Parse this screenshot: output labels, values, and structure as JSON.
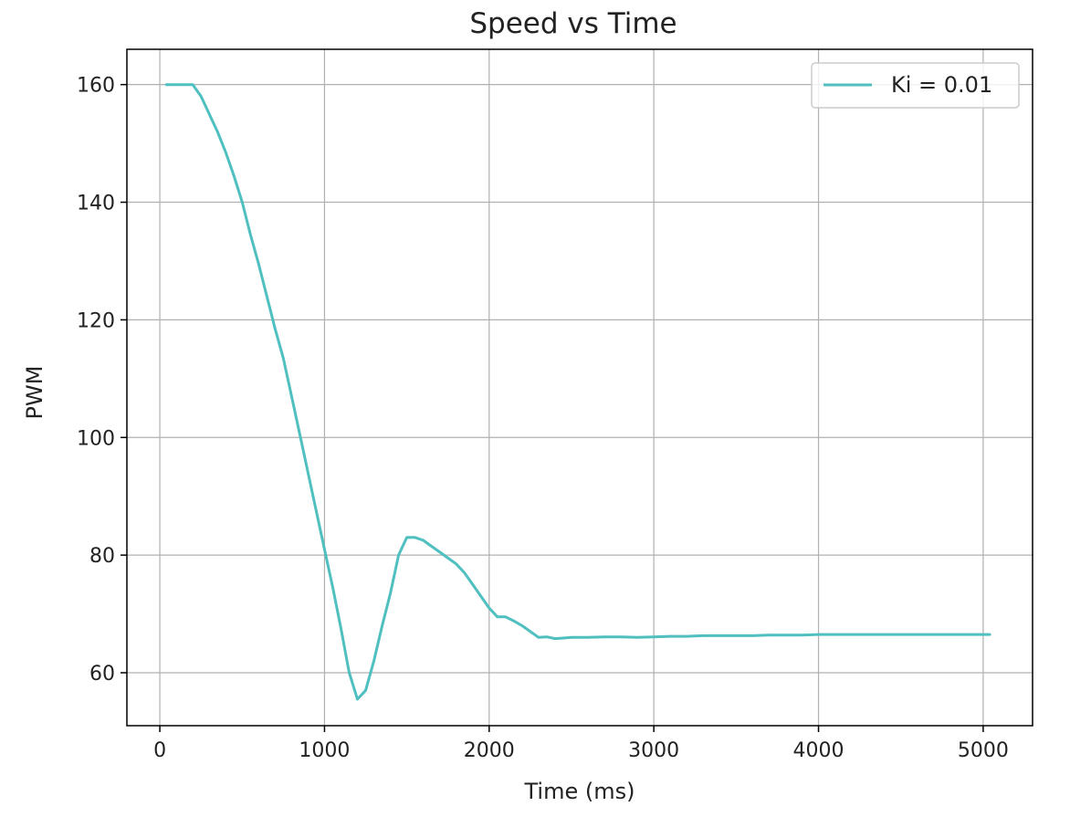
{
  "chart_data": {
    "type": "line",
    "title": "Speed vs Time",
    "xlabel": "Time (ms)",
    "ylabel": "PWM",
    "xlim": [
      -200,
      5300
    ],
    "ylim": [
      51,
      166
    ],
    "xticks": [
      0,
      1000,
      2000,
      3000,
      4000,
      5000
    ],
    "yticks": [
      60,
      80,
      100,
      120,
      140,
      160
    ],
    "grid": true,
    "legend": "top-right",
    "series": [
      {
        "name": "Ki = 0.01",
        "color": "#4fbfbf",
        "x": [
          40,
          100,
          150,
          200,
          250,
          300,
          350,
          400,
          450,
          500,
          550,
          600,
          650,
          700,
          750,
          800,
          850,
          900,
          950,
          1000,
          1050,
          1100,
          1150,
          1200,
          1250,
          1300,
          1350,
          1400,
          1450,
          1500,
          1550,
          1600,
          1650,
          1700,
          1750,
          1800,
          1850,
          1900,
          1950,
          2000,
          2050,
          2100,
          2150,
          2200,
          2250,
          2300,
          2350,
          2400,
          2450,
          2500,
          2600,
          2700,
          2800,
          2900,
          3000,
          3100,
          3200,
          3300,
          3400,
          3500,
          3600,
          3700,
          3800,
          3900,
          4000,
          4100,
          4200,
          4300,
          4400,
          4500,
          4600,
          4700,
          4800,
          4900,
          5000,
          5040
        ],
        "y": [
          160,
          160,
          160,
          160,
          158,
          155,
          152,
          148.5,
          144.5,
          140,
          134.5,
          129.5,
          124,
          118.5,
          113.5,
          107,
          100.5,
          94,
          87.5,
          81,
          74.5,
          67.5,
          60,
          55.5,
          57,
          62,
          68,
          73.5,
          80,
          83,
          83,
          82.5,
          81.5,
          80.5,
          79.5,
          78.5,
          77,
          75,
          73,
          71,
          69.5,
          69.5,
          68.8,
          68,
          67,
          66,
          66.1,
          65.8,
          65.9,
          66,
          66,
          66.1,
          66.1,
          66,
          66.1,
          66.2,
          66.2,
          66.3,
          66.3,
          66.3,
          66.3,
          66.4,
          66.4,
          66.4,
          66.5,
          66.5,
          66.5,
          66.5,
          66.5,
          66.5,
          66.5,
          66.5,
          66.5,
          66.5,
          66.5,
          66.5
        ]
      }
    ]
  }
}
